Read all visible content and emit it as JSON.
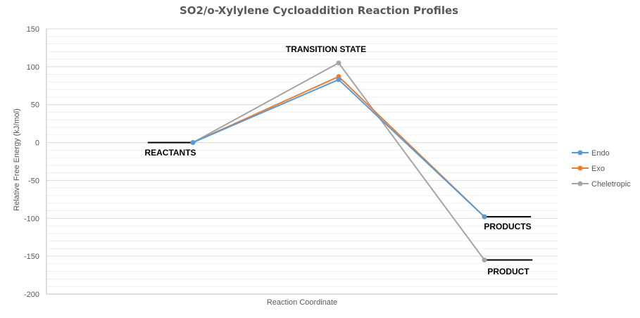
{
  "chart_data": {
    "type": "line",
    "title": "SO2/o-Xylylene Cycloaddition Reaction Profiles",
    "xlabel": "Reaction Coordinate",
    "ylabel": "Relative Free Energy (kJ/mol)",
    "ylim": [
      -200,
      150
    ],
    "yticks": [
      150,
      100,
      50,
      0,
      -50,
      -100,
      -150,
      -200
    ],
    "minor_grid_step": 10,
    "grid": true,
    "legend_position": "right",
    "x": [
      1,
      2,
      3
    ],
    "xlim": [
      0,
      3.5
    ],
    "series": [
      {
        "name": "Endo",
        "color": "#5b9bd5",
        "values": [
          0,
          83,
          -98
        ]
      },
      {
        "name": "Exo",
        "color": "#ed7d31",
        "values": [
          0,
          87,
          -98
        ]
      },
      {
        "name": "Cheletropic",
        "color": "#a5a5a5",
        "values": [
          0,
          105,
          -155
        ]
      }
    ],
    "levels": [
      {
        "label": "REACTANTS",
        "y": 0,
        "x_from": 0.69,
        "x_to": 1.0
      },
      {
        "label": "TRANSITION STATE",
        "y": null
      },
      {
        "label": "PRODUCTS",
        "y": -98,
        "x_from": 3.0,
        "x_to": 3.32
      },
      {
        "label": "PRODUCT",
        "y": -155,
        "x_from": 3.0,
        "x_to": 3.33
      }
    ]
  }
}
